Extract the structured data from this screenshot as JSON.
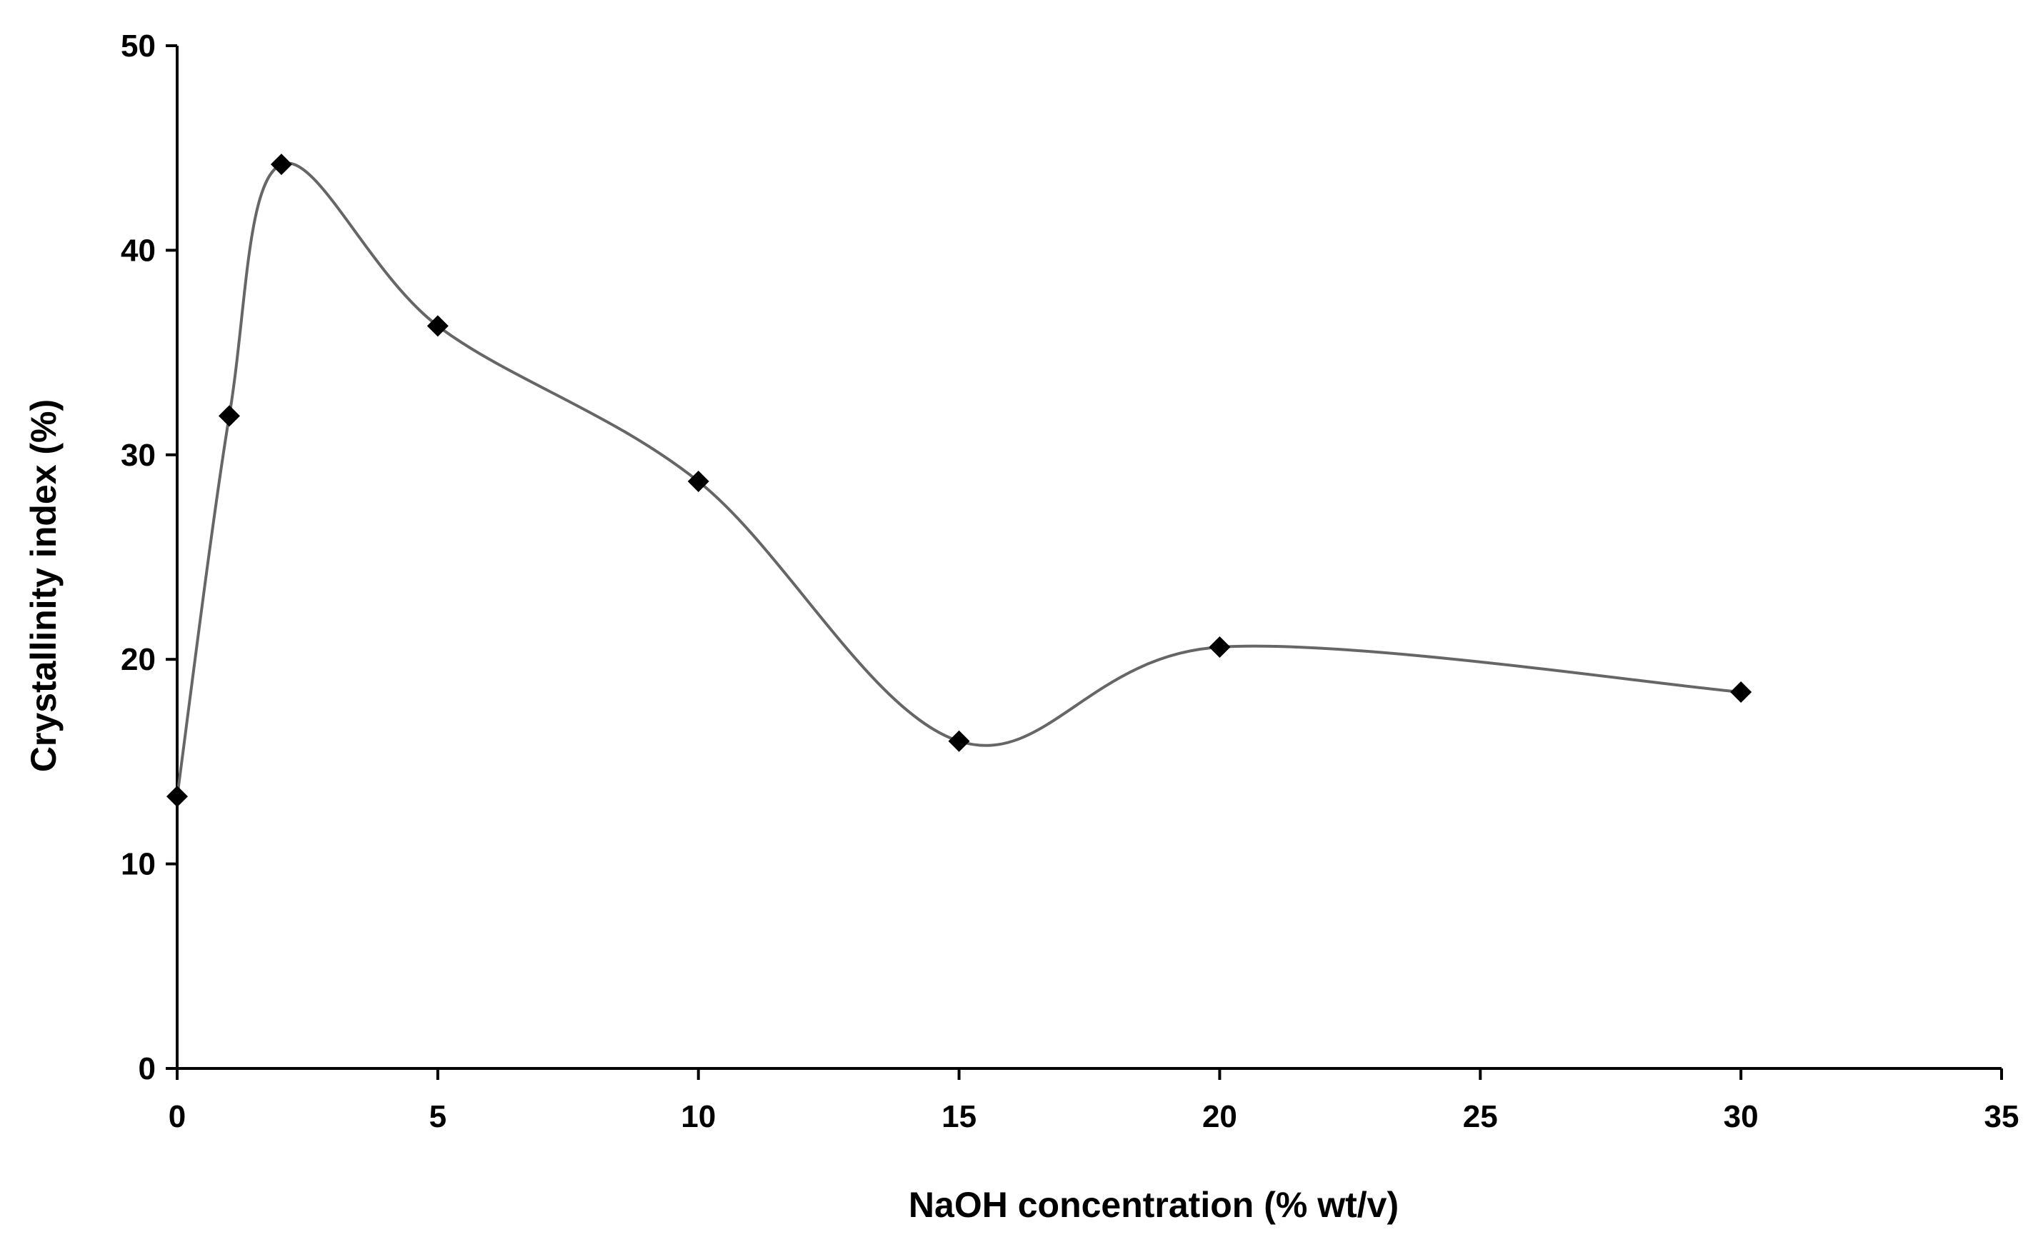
{
  "chart_data": {
    "type": "line",
    "title": "",
    "xlabel": "NaOH concentration (% wt/v)",
    "ylabel": "Crystallinity index (%)",
    "xlim": [
      0,
      35
    ],
    "ylim": [
      0,
      50
    ],
    "x_ticks": [
      0,
      5,
      10,
      15,
      20,
      25,
      30,
      35
    ],
    "y_ticks": [
      0,
      10,
      20,
      30,
      40,
      50
    ],
    "grid": false,
    "legend": "none",
    "series": [
      {
        "name": "Crystallinity index",
        "marker": "diamond",
        "smooth": true,
        "x": [
          0,
          1,
          2,
          5,
          10,
          15,
          20,
          30
        ],
        "values": [
          13.3,
          31.9,
          44.2,
          36.3,
          28.7,
          16.0,
          20.6,
          18.4
        ]
      }
    ],
    "colors": {
      "line": "#666666",
      "marker": "#000000",
      "axis": "#000000"
    }
  }
}
